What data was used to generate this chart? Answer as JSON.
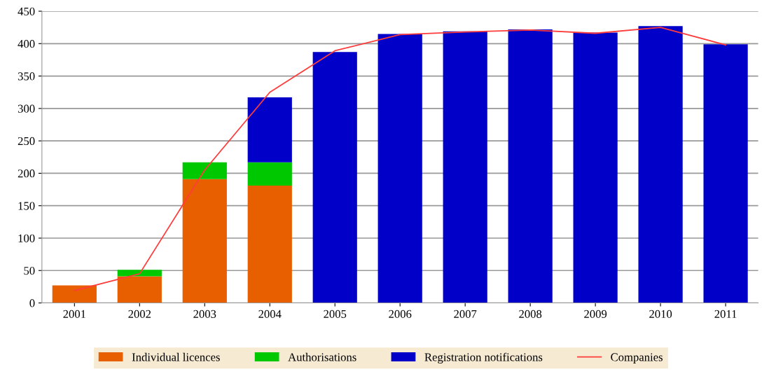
{
  "chart_data": {
    "type": "bar",
    "stacked": true,
    "categories": [
      "2001",
      "2002",
      "2003",
      "2004",
      "2005",
      "2006",
      "2007",
      "2008",
      "2009",
      "2010",
      "2011"
    ],
    "series": [
      {
        "name": "Individual licences",
        "color": "#e85f00",
        "values": [
          27,
          41,
          191,
          181,
          null,
          null,
          null,
          null,
          null,
          null,
          null
        ]
      },
      {
        "name": "Authorisations",
        "color": "#00c800",
        "values": [
          null,
          10,
          26,
          36,
          null,
          null,
          null,
          null,
          null,
          null,
          null
        ]
      },
      {
        "name": "Registration notifications",
        "color": "#0000c8",
        "values": [
          null,
          null,
          null,
          100,
          387,
          415,
          419,
          422,
          417,
          427,
          399
        ]
      },
      {
        "name": "Companies",
        "type": "line",
        "color": "#ff3c3c",
        "values": [
          19,
          45,
          205,
          325,
          389,
          414,
          418,
          421,
          416,
          425,
          398
        ]
      }
    ],
    "ylim": [
      0,
      450
    ],
    "yticks": [
      0,
      50,
      100,
      150,
      200,
      250,
      300,
      350,
      400,
      450
    ],
    "grid": "y",
    "legend": "bottom"
  }
}
